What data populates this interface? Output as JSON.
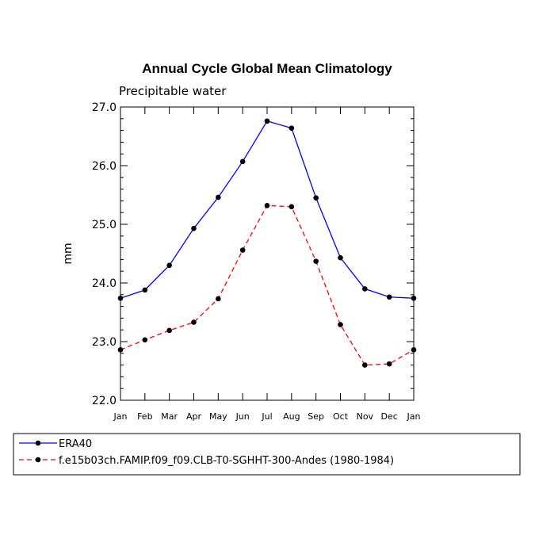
{
  "chart_data": {
    "type": "line",
    "title": "Annual Cycle Global Mean Climatology",
    "subtitle": "Precipitable water",
    "xlabel": "",
    "ylabel": "mm",
    "categories": [
      "Jan",
      "Feb",
      "Mar",
      "Apr",
      "May",
      "Jun",
      "Jul",
      "Aug",
      "Sep",
      "Oct",
      "Nov",
      "Dec",
      "Jan"
    ],
    "ylim": [
      22.0,
      27.0
    ],
    "yticks": [
      "22.0",
      "23.0",
      "24.0",
      "25.0",
      "26.0",
      "27.0"
    ],
    "series": [
      {
        "name": "ERA40",
        "color": "#0000ff",
        "dash": "solid",
        "values": [
          23.74,
          23.88,
          24.3,
          24.93,
          25.46,
          26.07,
          26.76,
          26.64,
          25.45,
          24.43,
          23.9,
          23.76,
          23.74
        ]
      },
      {
        "name": "f.e15b03ch.FAMIP.f09_f09.CLB-T0-SGHHT-300-Andes (1980-1984)",
        "color": "#ff0000",
        "dash": "dashed",
        "values": [
          22.86,
          23.03,
          23.19,
          23.33,
          23.73,
          24.56,
          25.32,
          25.3,
          24.37,
          23.29,
          22.6,
          22.62,
          22.86
        ]
      }
    ],
    "legend_position": "bottom-left"
  }
}
